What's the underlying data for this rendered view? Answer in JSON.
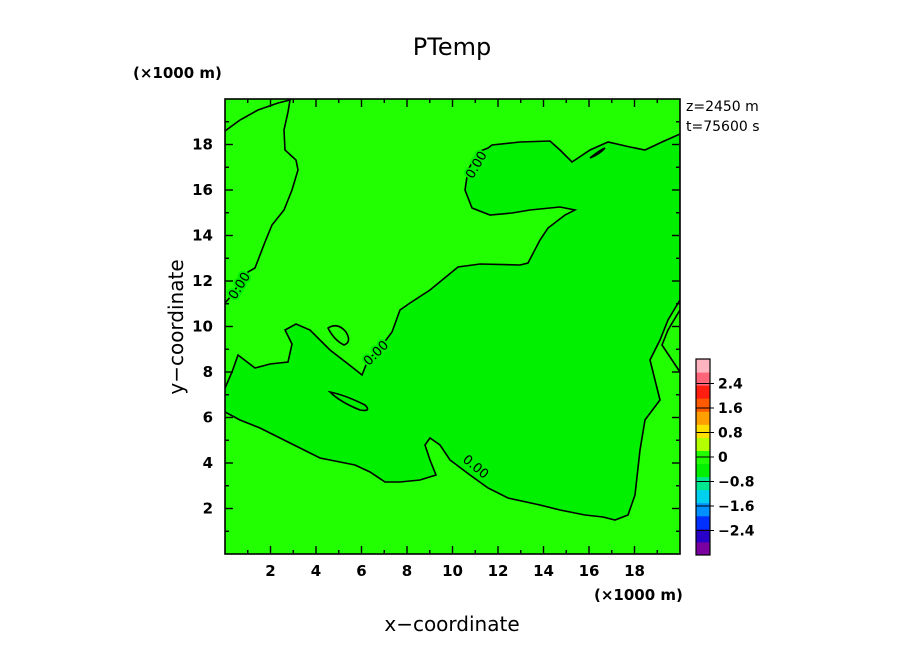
{
  "chart_data": {
    "type": "contour",
    "title": "PTemp",
    "xlabel": "x−coordinate",
    "ylabel": "y−coordinate",
    "x_unit": "(×1000 m)",
    "y_unit": "(×1000 m)",
    "xlim": [
      0,
      20
    ],
    "ylim": [
      0,
      20
    ],
    "x_ticks": [
      2,
      4,
      6,
      8,
      10,
      12,
      14,
      16,
      18
    ],
    "y_ticks": [
      2,
      4,
      6,
      8,
      10,
      12,
      14,
      16,
      18
    ],
    "info_lines": [
      "z=2450 m",
      "t=75600 s"
    ],
    "contour_label": "0.00",
    "fill_colors": {
      "above_zero": "#22ff00",
      "below_zero": "#00f000"
    },
    "colorbar": {
      "ticks": [
        "2.4",
        "1.6",
        "0.8",
        "0",
        "−0.8",
        "−1.6",
        "−2.4"
      ],
      "values": [
        2.4,
        1.6,
        0.8,
        0,
        -0.8,
        -1.6,
        -2.4
      ],
      "range": [
        -3.2,
        3.2
      ],
      "colors": [
        "#7a00a0",
        "#2800c8",
        "#0030ff",
        "#0090ff",
        "#00d0f0",
        "#00e890",
        "#00f000",
        "#22ff00",
        "#b4ff00",
        "#ffe000",
        "#ffa000",
        "#ff5a00",
        "#ff1e10",
        "#ff6478",
        "#ffb4c0"
      ]
    }
  }
}
